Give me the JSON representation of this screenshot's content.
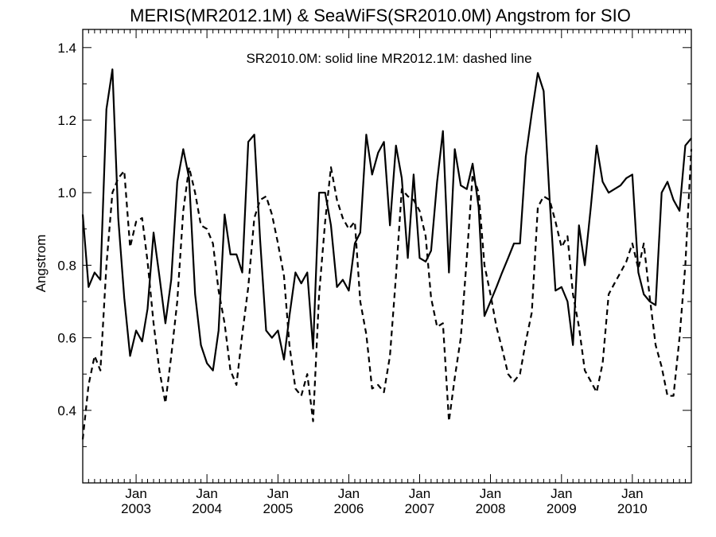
{
  "chart_data": {
    "type": "line",
    "title": "MERIS(MR2012.1M) & SeaWiFS(SR2010.0M)  Angstrom for SIO",
    "ylabel": "Angstrom",
    "xlabel": "",
    "annotation": "SR2010.0M: solid line   MR2012.1M: dashed line",
    "ylim": [
      0.2,
      1.45
    ],
    "xlim": [
      "2002-04-01",
      "2010-11-01"
    ],
    "yticks": [
      "0.4",
      "0.6",
      "0.8",
      "1.0",
      "1.2",
      "1.4"
    ],
    "xticks": [
      {
        "month": "Jan",
        "year": "2003",
        "date": "2003-01-01"
      },
      {
        "month": "Jan",
        "year": "2004",
        "date": "2004-01-01"
      },
      {
        "month": "Jan",
        "year": "2005",
        "date": "2005-01-01"
      },
      {
        "month": "Jan",
        "year": "2006",
        "date": "2006-01-01"
      },
      {
        "month": "Jan",
        "year": "2007",
        "date": "2007-01-01"
      },
      {
        "month": "Jan",
        "year": "2008",
        "date": "2008-01-01"
      },
      {
        "month": "Jan",
        "year": "2009",
        "date": "2009-01-01"
      },
      {
        "month": "Jan",
        "year": "2010",
        "date": "2010-01-01"
      }
    ],
    "grid": false,
    "series": [
      {
        "name": "SR2010.0M",
        "style": "solid",
        "points": [
          [
            "2002-04-01",
            0.94
          ],
          [
            "2002-05-01",
            0.74
          ],
          [
            "2002-06-01",
            0.78
          ],
          [
            "2002-07-01",
            0.76
          ],
          [
            "2002-08-01",
            1.23
          ],
          [
            "2002-09-01",
            1.34
          ],
          [
            "2002-10-01",
            0.93
          ],
          [
            "2002-11-01",
            0.71
          ],
          [
            "2002-12-01",
            0.55
          ],
          [
            "2003-01-01",
            0.62
          ],
          [
            "2003-02-01",
            0.59
          ],
          [
            "2003-03-01",
            0.68
          ],
          [
            "2003-04-01",
            0.89
          ],
          [
            "2003-05-01",
            0.77
          ],
          [
            "2003-06-01",
            0.64
          ],
          [
            "2003-07-01",
            0.76
          ],
          [
            "2003-08-01",
            1.03
          ],
          [
            "2003-09-01",
            1.12
          ],
          [
            "2003-10-01",
            1.04
          ],
          [
            "2003-11-01",
            0.72
          ],
          [
            "2003-12-01",
            0.58
          ],
          [
            "2004-01-01",
            0.53
          ],
          [
            "2004-02-01",
            0.51
          ],
          [
            "2004-03-01",
            0.62
          ],
          [
            "2004-04-01",
            0.94
          ],
          [
            "2004-05-01",
            0.83
          ],
          [
            "2004-06-01",
            0.83
          ],
          [
            "2004-07-01",
            0.78
          ],
          [
            "2004-08-01",
            1.14
          ],
          [
            "2004-09-01",
            1.16
          ],
          [
            "2004-10-01",
            0.87
          ],
          [
            "2004-11-01",
            0.62
          ],
          [
            "2004-12-01",
            0.6
          ],
          [
            "2005-01-01",
            0.62
          ],
          [
            "2005-02-01",
            0.54
          ],
          [
            "2005-03-01",
            0.66
          ],
          [
            "2005-04-01",
            0.78
          ],
          [
            "2005-05-01",
            0.75
          ],
          [
            "2005-06-01",
            0.78
          ],
          [
            "2005-07-01",
            0.57
          ],
          [
            "2005-08-01",
            1.0
          ],
          [
            "2005-09-01",
            1.0
          ],
          [
            "2005-10-01",
            0.91
          ],
          [
            "2005-11-01",
            0.74
          ],
          [
            "2005-12-01",
            0.76
          ],
          [
            "2006-01-01",
            0.73
          ],
          [
            "2006-02-01",
            0.86
          ],
          [
            "2006-03-01",
            0.89
          ],
          [
            "2006-04-01",
            1.16
          ],
          [
            "2006-05-01",
            1.05
          ],
          [
            "2006-06-01",
            1.11
          ],
          [
            "2006-07-01",
            1.14
          ],
          [
            "2006-08-01",
            0.91
          ],
          [
            "2006-09-01",
            1.13
          ],
          [
            "2006-10-01",
            1.04
          ],
          [
            "2006-11-01",
            0.82
          ],
          [
            "2006-12-01",
            1.05
          ],
          [
            "2007-01-01",
            0.82
          ],
          [
            "2007-02-01",
            0.81
          ],
          [
            "2007-03-01",
            0.84
          ],
          [
            "2007-04-01",
            1.03
          ],
          [
            "2007-05-01",
            1.17
          ],
          [
            "2007-06-01",
            0.78
          ],
          [
            "2007-07-01",
            1.12
          ],
          [
            "2007-08-01",
            1.02
          ],
          [
            "2007-09-01",
            1.01
          ],
          [
            "2007-10-01",
            1.08
          ],
          [
            "2007-11-01",
            0.96
          ],
          [
            "2007-12-01",
            0.66
          ],
          [
            "2008-01-01",
            0.7
          ],
          [
            "2008-02-01",
            0.74
          ],
          [
            "2008-03-01",
            0.78
          ],
          [
            "2008-04-01",
            0.82
          ],
          [
            "2008-05-01",
            0.86
          ],
          [
            "2008-06-01",
            0.86
          ],
          [
            "2008-07-01",
            1.1
          ],
          [
            "2008-08-01",
            1.22
          ],
          [
            "2008-09-01",
            1.33
          ],
          [
            "2008-10-01",
            1.28
          ],
          [
            "2008-11-01",
            0.98
          ],
          [
            "2008-12-01",
            0.73
          ],
          [
            "2009-01-01",
            0.74
          ],
          [
            "2009-02-01",
            0.7
          ],
          [
            "2009-03-01",
            0.58
          ],
          [
            "2009-04-01",
            0.91
          ],
          [
            "2009-05-01",
            0.8
          ],
          [
            "2009-06-01",
            0.96
          ],
          [
            "2009-07-01",
            1.13
          ],
          [
            "2009-08-01",
            1.03
          ],
          [
            "2009-09-01",
            1.0
          ],
          [
            "2009-10-01",
            1.01
          ],
          [
            "2009-11-01",
            1.02
          ],
          [
            "2009-12-01",
            1.04
          ],
          [
            "2010-01-01",
            1.05
          ],
          [
            "2010-02-01",
            0.78
          ],
          [
            "2010-03-01",
            0.72
          ],
          [
            "2010-04-01",
            0.7
          ],
          [
            "2010-05-01",
            0.69
          ],
          [
            "2010-06-01",
            1.0
          ],
          [
            "2010-07-01",
            1.03
          ],
          [
            "2010-08-01",
            0.98
          ],
          [
            "2010-09-01",
            0.95
          ],
          [
            "2010-10-01",
            1.13
          ],
          [
            "2010-11-01",
            1.15
          ]
        ]
      },
      {
        "name": "MR2012.1M",
        "style": "dashed",
        "points": [
          [
            "2002-04-01",
            0.32
          ],
          [
            "2002-05-01",
            0.47
          ],
          [
            "2002-06-01",
            0.55
          ],
          [
            "2002-07-01",
            0.51
          ],
          [
            "2002-08-01",
            0.8
          ],
          [
            "2002-09-01",
            1.0
          ],
          [
            "2002-10-01",
            1.04
          ],
          [
            "2002-11-01",
            1.06
          ],
          [
            "2002-12-01",
            0.85
          ],
          [
            "2003-01-01",
            0.92
          ],
          [
            "2003-02-01",
            0.93
          ],
          [
            "2003-03-01",
            0.81
          ],
          [
            "2003-04-01",
            0.64
          ],
          [
            "2003-05-01",
            0.51
          ],
          [
            "2003-06-01",
            0.42
          ],
          [
            "2003-07-01",
            0.55
          ],
          [
            "2003-08-01",
            0.7
          ],
          [
            "2003-09-01",
            0.95
          ],
          [
            "2003-10-01",
            1.07
          ],
          [
            "2003-11-01",
            1.0
          ],
          [
            "2003-12-01",
            0.91
          ],
          [
            "2004-01-01",
            0.9
          ],
          [
            "2004-02-01",
            0.86
          ],
          [
            "2004-03-01",
            0.73
          ],
          [
            "2004-04-01",
            0.64
          ],
          [
            "2004-05-01",
            0.51
          ],
          [
            "2004-06-01",
            0.47
          ],
          [
            "2004-07-01",
            0.61
          ],
          [
            "2004-08-01",
            0.74
          ],
          [
            "2004-09-01",
            0.93
          ],
          [
            "2004-10-01",
            0.98
          ],
          [
            "2004-11-01",
            0.99
          ],
          [
            "2004-12-01",
            0.94
          ],
          [
            "2005-01-01",
            0.86
          ],
          [
            "2005-02-01",
            0.77
          ],
          [
            "2005-03-01",
            0.58
          ],
          [
            "2005-04-01",
            0.46
          ],
          [
            "2005-05-01",
            0.44
          ],
          [
            "2005-06-01",
            0.5
          ],
          [
            "2005-07-01",
            0.37
          ],
          [
            "2005-08-01",
            0.72
          ],
          [
            "2005-09-01",
            0.92
          ],
          [
            "2005-10-01",
            1.07
          ],
          [
            "2005-11-01",
            0.98
          ],
          [
            "2005-12-01",
            0.93
          ],
          [
            "2006-01-01",
            0.9
          ],
          [
            "2006-02-01",
            0.92
          ],
          [
            "2006-03-01",
            0.7
          ],
          [
            "2006-04-01",
            0.61
          ],
          [
            "2006-05-01",
            0.46
          ],
          [
            "2006-06-01",
            0.47
          ],
          [
            "2006-07-01",
            0.45
          ],
          [
            "2006-08-01",
            0.55
          ],
          [
            "2006-09-01",
            0.77
          ],
          [
            "2006-10-01",
            1.01
          ],
          [
            "2006-11-01",
            0.99
          ],
          [
            "2006-12-01",
            0.98
          ],
          [
            "2007-01-01",
            0.95
          ],
          [
            "2007-02-01",
            0.88
          ],
          [
            "2007-03-01",
            0.71
          ],
          [
            "2007-04-01",
            0.63
          ],
          [
            "2007-05-01",
            0.64
          ],
          [
            "2007-06-01",
            0.37
          ],
          [
            "2007-07-01",
            0.49
          ],
          [
            "2007-08-01",
            0.6
          ],
          [
            "2007-09-01",
            0.82
          ],
          [
            "2007-10-01",
            1.05
          ],
          [
            "2007-11-01",
            1.0
          ],
          [
            "2007-12-01",
            0.8
          ],
          [
            "2008-01-01",
            0.72
          ],
          [
            "2008-02-01",
            0.63
          ],
          [
            "2008-03-01",
            0.57
          ],
          [
            "2008-04-01",
            0.5
          ],
          [
            "2008-05-01",
            0.48
          ],
          [
            "2008-06-01",
            0.5
          ],
          [
            "2008-07-01",
            0.59
          ],
          [
            "2008-08-01",
            0.67
          ],
          [
            "2008-09-01",
            0.96
          ],
          [
            "2008-10-01",
            0.99
          ],
          [
            "2008-11-01",
            0.98
          ],
          [
            "2008-12-01",
            0.92
          ],
          [
            "2009-01-01",
            0.85
          ],
          [
            "2009-02-01",
            0.88
          ],
          [
            "2009-03-01",
            0.72
          ],
          [
            "2009-04-01",
            0.63
          ],
          [
            "2009-05-01",
            0.51
          ],
          [
            "2009-06-01",
            0.48
          ],
          [
            "2009-07-01",
            0.45
          ],
          [
            "2009-08-01",
            0.53
          ],
          [
            "2009-09-01",
            0.72
          ],
          [
            "2009-10-01",
            0.75
          ],
          [
            "2009-11-01",
            0.78
          ],
          [
            "2009-12-01",
            0.81
          ],
          [
            "2010-01-01",
            0.86
          ],
          [
            "2010-02-01",
            0.79
          ],
          [
            "2010-03-01",
            0.86
          ],
          [
            "2010-04-01",
            0.71
          ],
          [
            "2010-05-01",
            0.58
          ],
          [
            "2010-06-01",
            0.52
          ],
          [
            "2010-07-01",
            0.44
          ],
          [
            "2010-08-01",
            0.44
          ],
          [
            "2010-09-01",
            0.6
          ],
          [
            "2010-10-01",
            0.8
          ],
          [
            "2010-11-01",
            1.12
          ]
        ]
      }
    ]
  }
}
